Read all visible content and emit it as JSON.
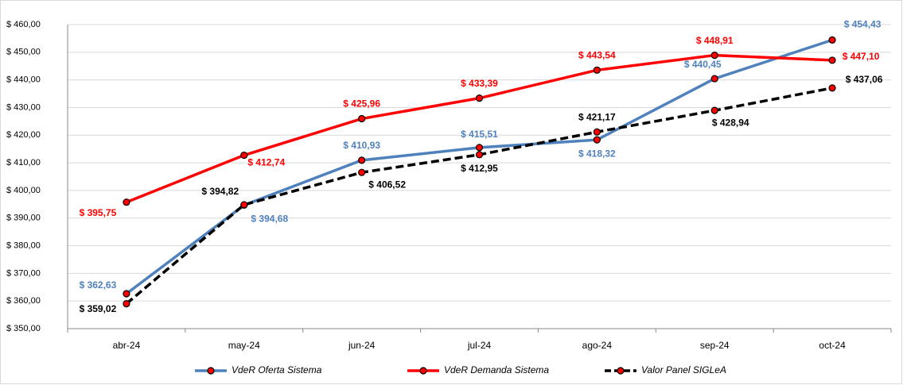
{
  "chart_data": {
    "type": "line",
    "categories": [
      "abr-24",
      "may-24",
      "jun-24",
      "jul-24",
      "ago-24",
      "sep-24",
      "oct-24"
    ],
    "series": [
      {
        "name": "VdeR Oferta Sistema",
        "color": "#4f81bd",
        "dashed": false,
        "values": [
          362.63,
          394.68,
          410.93,
          415.51,
          418.32,
          440.45,
          454.43
        ],
        "value_labels": [
          "$ 362,63",
          "$ 394,68",
          "$ 410,93",
          "$ 415,51",
          "$ 418,32",
          "$ 440,45",
          "$ 454,43"
        ]
      },
      {
        "name": "VdeR Demanda Sistema",
        "color": "#ff0000",
        "dashed": false,
        "values": [
          395.75,
          412.74,
          425.96,
          433.39,
          443.54,
          448.91,
          447.1
        ],
        "value_labels": [
          "$ 395,75",
          "$ 412,74",
          "$ 425,96",
          "$ 433,39",
          "$ 443,54",
          "$ 448,91",
          "$ 447,10"
        ]
      },
      {
        "name": "Valor Panel SIGLeA",
        "color": "#000000",
        "dashed": true,
        "values": [
          359.02,
          394.82,
          406.52,
          412.95,
          421.17,
          428.94,
          437.06
        ],
        "value_labels": [
          "$ 359,02",
          "$ 394,82",
          "$ 406,52",
          "$ 412,95",
          "$ 421,17",
          "$ 428,94",
          "$ 437,06"
        ]
      }
    ],
    "ylim": [
      350,
      460
    ],
    "yticks": [
      {
        "value": 350,
        "label": "$ 350,00"
      },
      {
        "value": 360,
        "label": "$ 360,00"
      },
      {
        "value": 370,
        "label": "$ 370,00"
      },
      {
        "value": 380,
        "label": "$ 380,00"
      },
      {
        "value": 390,
        "label": "$ 390,00"
      },
      {
        "value": 400,
        "label": "$ 400,00"
      },
      {
        "value": 410,
        "label": "$ 410,00"
      },
      {
        "value": 420,
        "label": "$ 420,00"
      },
      {
        "value": 430,
        "label": "$ 430,00"
      },
      {
        "value": 440,
        "label": "$ 440,00"
      },
      {
        "value": 450,
        "label": "$ 450,00"
      },
      {
        "value": 460,
        "label": "$ 460,00"
      }
    ],
    "grid": true,
    "legend": "bottom",
    "marker_color": "#ff0000"
  }
}
